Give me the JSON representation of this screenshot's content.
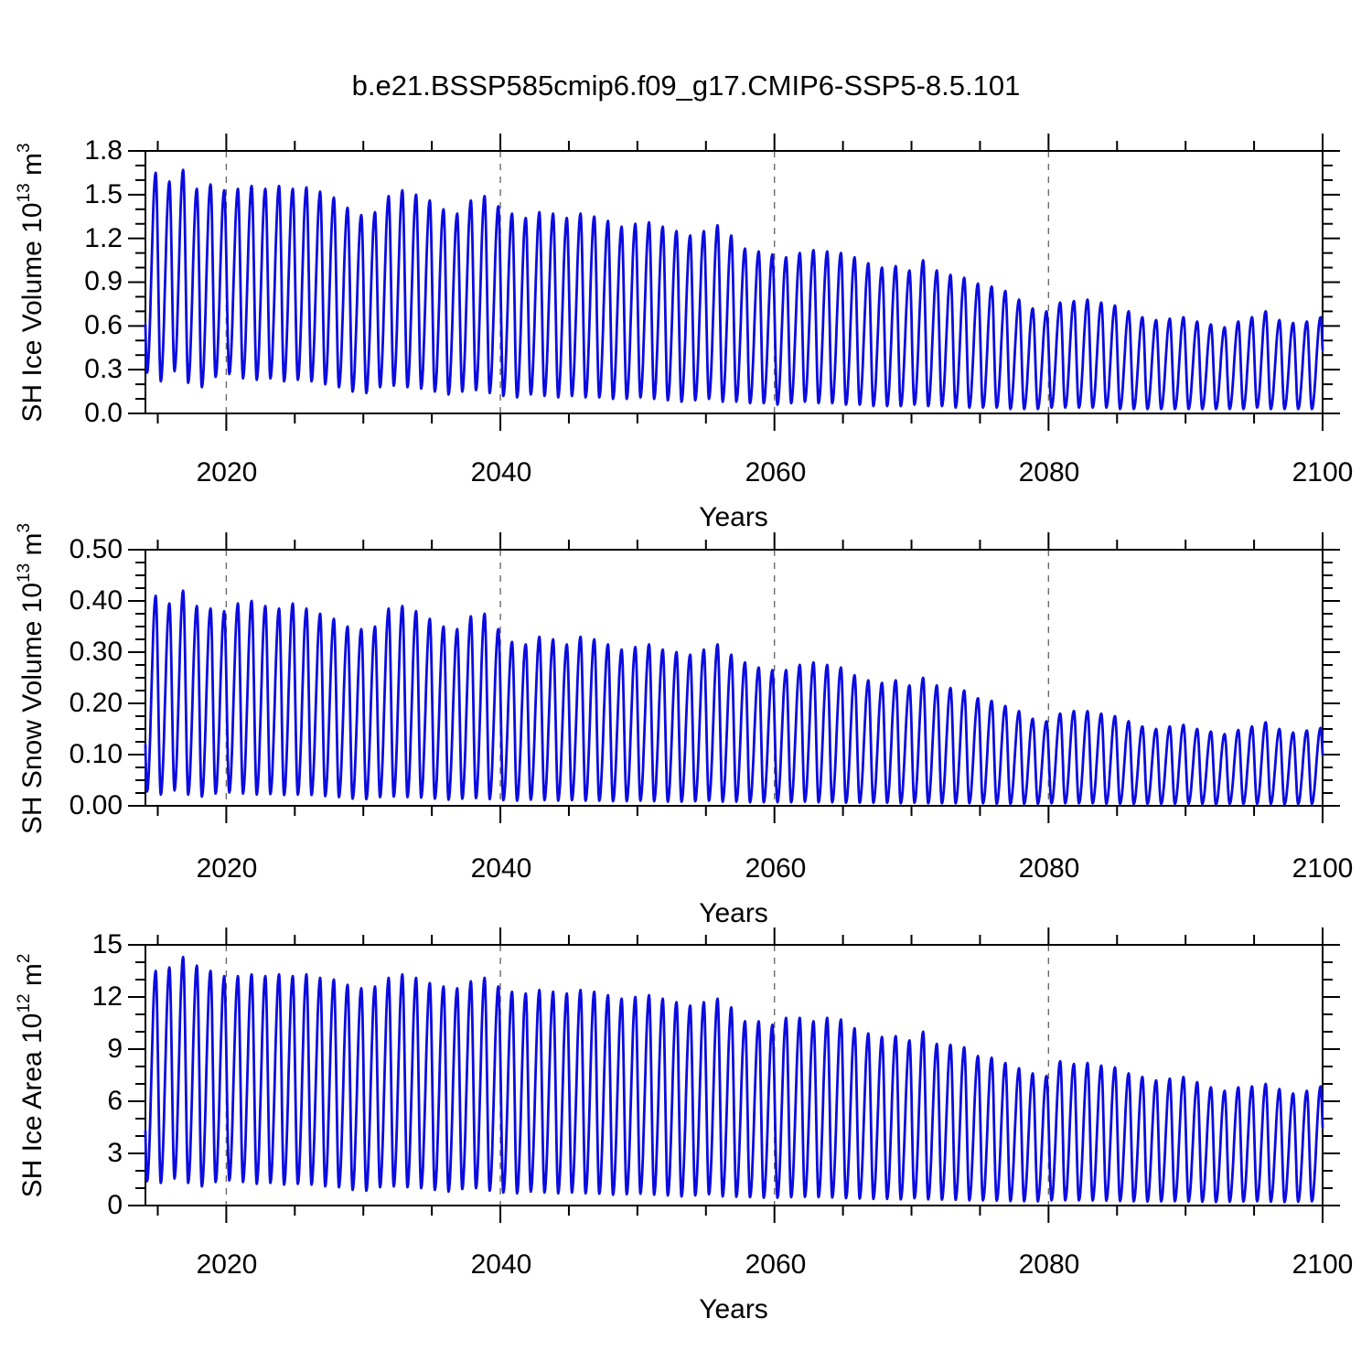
{
  "title": "b.e21.BSSP585cmip6.f09_g17.CMIP6-SSP5-8.5.101",
  "line_color": "#0b0be0",
  "grid_color": "#6b6b6b",
  "frame_color": "#000000",
  "chart_data": [
    {
      "type": "line",
      "panel": "top",
      "ylabel": {
        "pre": "SH Ice Volume 10",
        "sup": "13",
        "mid": " m",
        "sup2": "3"
      },
      "xlabel": "Years",
      "x_tick_labels": [
        "2020",
        "2040",
        "2060",
        "2080",
        "2100"
      ],
      "y_tick_labels": [
        "1.8",
        "1.5",
        "1.2",
        "0.9",
        "0.6",
        "0.3",
        "0.0"
      ],
      "ylim": [
        0,
        1.8
      ],
      "y_major_step": 0.3,
      "y_minor_step": 0.1,
      "xlim": [
        2014.1,
        2100
      ],
      "x_major_step": 20,
      "x_minor_step": 5,
      "grid": "vertical-dashed-at-major-x",
      "legend": "none",
      "year_first": 2014,
      "year_last": 2099,
      "seasonal_cycle": {
        "annual_min_at_year_fraction": 0.22,
        "annual_max_at_year_fraction": 0.85
      },
      "annual_max": [
        1.65,
        1.59,
        1.67,
        1.54,
        1.57,
        1.53,
        1.54,
        1.56,
        1.54,
        1.56,
        1.54,
        1.55,
        1.52,
        1.48,
        1.41,
        1.36,
        1.38,
        1.49,
        1.53,
        1.5,
        1.46,
        1.4,
        1.37,
        1.46,
        1.49,
        1.42,
        1.37,
        1.34,
        1.38,
        1.37,
        1.34,
        1.37,
        1.35,
        1.32,
        1.28,
        1.3,
        1.31,
        1.28,
        1.25,
        1.22,
        1.25,
        1.29,
        1.22,
        1.13,
        1.11,
        1.09,
        1.07,
        1.1,
        1.12,
        1.11,
        1.1,
        1.07,
        1.03,
        1.0,
        1.01,
        0.98,
        1.05,
        0.98,
        0.95,
        0.93,
        0.89,
        0.87,
        0.84,
        0.78,
        0.72,
        0.7,
        0.76,
        0.77,
        0.78,
        0.76,
        0.74,
        0.7,
        0.66,
        0.64,
        0.65,
        0.66,
        0.63,
        0.61,
        0.59,
        0.63,
        0.66,
        0.7,
        0.64,
        0.62,
        0.63,
        0.66
      ],
      "annual_min": [
        0.28,
        0.22,
        0.29,
        0.21,
        0.18,
        0.25,
        0.27,
        0.24,
        0.23,
        0.24,
        0.22,
        0.23,
        0.22,
        0.2,
        0.18,
        0.15,
        0.14,
        0.18,
        0.19,
        0.18,
        0.17,
        0.15,
        0.13,
        0.15,
        0.16,
        0.14,
        0.12,
        0.11,
        0.13,
        0.12,
        0.11,
        0.12,
        0.11,
        0.11,
        0.1,
        0.1,
        0.11,
        0.1,
        0.09,
        0.08,
        0.09,
        0.1,
        0.08,
        0.08,
        0.07,
        0.07,
        0.06,
        0.07,
        0.08,
        0.07,
        0.07,
        0.06,
        0.06,
        0.05,
        0.05,
        0.05,
        0.06,
        0.05,
        0.05,
        0.04,
        0.04,
        0.04,
        0.04,
        0.03,
        0.03,
        0.03,
        0.04,
        0.04,
        0.04,
        0.04,
        0.04,
        0.03,
        0.03,
        0.03,
        0.03,
        0.03,
        0.03,
        0.03,
        0.03,
        0.03,
        0.03,
        0.04,
        0.03,
        0.03,
        0.03,
        0.03
      ]
    },
    {
      "type": "line",
      "panel": "middle",
      "ylabel": {
        "pre": "SH Snow Volume 10",
        "sup": "13",
        "mid": " m",
        "sup2": "3"
      },
      "xlabel": "Years",
      "x_tick_labels": [
        "2020",
        "2040",
        "2060",
        "2080",
        "2100"
      ],
      "y_tick_labels": [
        "0.50",
        "0.40",
        "0.30",
        "0.20",
        "0.10",
        "0.00"
      ],
      "ylim": [
        0,
        0.5
      ],
      "y_major_step": 0.1,
      "y_minor_step": 0.025,
      "xlim": [
        2014.1,
        2100
      ],
      "x_major_step": 20,
      "x_minor_step": 5,
      "grid": "vertical-dashed-at-major-x",
      "legend": "none",
      "year_first": 2014,
      "year_last": 2099,
      "seasonal_cycle": {
        "annual_min_at_year_fraction": 0.22,
        "annual_max_at_year_fraction": 0.85
      },
      "annual_max": [
        0.41,
        0.395,
        0.42,
        0.39,
        0.385,
        0.38,
        0.395,
        0.4,
        0.39,
        0.385,
        0.395,
        0.385,
        0.375,
        0.365,
        0.35,
        0.345,
        0.35,
        0.385,
        0.39,
        0.38,
        0.365,
        0.35,
        0.345,
        0.37,
        0.375,
        0.345,
        0.32,
        0.315,
        0.33,
        0.325,
        0.315,
        0.33,
        0.325,
        0.315,
        0.305,
        0.31,
        0.315,
        0.305,
        0.3,
        0.295,
        0.305,
        0.315,
        0.295,
        0.28,
        0.27,
        0.265,
        0.265,
        0.275,
        0.28,
        0.275,
        0.27,
        0.255,
        0.245,
        0.24,
        0.245,
        0.235,
        0.25,
        0.235,
        0.23,
        0.225,
        0.21,
        0.205,
        0.195,
        0.185,
        0.17,
        0.165,
        0.18,
        0.185,
        0.185,
        0.18,
        0.175,
        0.165,
        0.155,
        0.15,
        0.155,
        0.158,
        0.15,
        0.145,
        0.14,
        0.148,
        0.155,
        0.163,
        0.15,
        0.143,
        0.147,
        0.152
      ],
      "annual_min": [
        0.028,
        0.022,
        0.03,
        0.022,
        0.018,
        0.024,
        0.026,
        0.024,
        0.022,
        0.023,
        0.021,
        0.022,
        0.021,
        0.019,
        0.017,
        0.014,
        0.013,
        0.017,
        0.018,
        0.017,
        0.016,
        0.014,
        0.012,
        0.014,
        0.015,
        0.013,
        0.011,
        0.01,
        0.012,
        0.011,
        0.01,
        0.011,
        0.01,
        0.01,
        0.009,
        0.009,
        0.01,
        0.009,
        0.008,
        0.008,
        0.009,
        0.01,
        0.008,
        0.008,
        0.007,
        0.007,
        0.007,
        0.007,
        0.008,
        0.007,
        0.007,
        0.006,
        0.006,
        0.006,
        0.006,
        0.005,
        0.006,
        0.005,
        0.005,
        0.005,
        0.005,
        0.005,
        0.004,
        0.004,
        0.004,
        0.004,
        0.005,
        0.005,
        0.005,
        0.005,
        0.004,
        0.004,
        0.004,
        0.004,
        0.004,
        0.004,
        0.004,
        0.004,
        0.003,
        0.004,
        0.004,
        0.004,
        0.004,
        0.003,
        0.004,
        0.004
      ]
    },
    {
      "type": "line",
      "panel": "bottom",
      "ylabel": {
        "pre": "SH Ice Area 10",
        "sup": "12",
        "mid": " m",
        "sup2": "2"
      },
      "xlabel": "Years",
      "x_tick_labels": [
        "2020",
        "2040",
        "2060",
        "2080",
        "2100"
      ],
      "y_tick_labels": [
        "15",
        "12",
        "9",
        "6",
        "3",
        "0"
      ],
      "ylim": [
        0,
        15
      ],
      "y_major_step": 3,
      "y_minor_step": 1,
      "xlim": [
        2014.1,
        2100
      ],
      "x_major_step": 20,
      "x_minor_step": 5,
      "grid": "vertical-dashed-at-major-x",
      "legend": "none",
      "year_first": 2014,
      "year_last": 2099,
      "seasonal_cycle": {
        "annual_min_at_year_fraction": 0.22,
        "annual_max_at_year_fraction": 0.85
      },
      "annual_max": [
        13.5,
        13.7,
        14.3,
        13.8,
        13.5,
        13.2,
        13.2,
        13.3,
        13.2,
        13.3,
        13.2,
        13.3,
        13.1,
        13.0,
        12.7,
        12.5,
        12.6,
        13.1,
        13.3,
        13.1,
        12.8,
        12.6,
        12.5,
        12.9,
        13.1,
        12.6,
        12.3,
        12.2,
        12.4,
        12.3,
        12.2,
        12.4,
        12.3,
        12.1,
        11.9,
        12.0,
        12.1,
        11.9,
        11.7,
        11.5,
        11.7,
        11.9,
        11.4,
        10.6,
        10.6,
        10.4,
        10.8,
        10.8,
        10.6,
        10.8,
        10.7,
        10.2,
        9.9,
        9.7,
        9.75,
        9.5,
        10.0,
        9.3,
        9.25,
        9.1,
        8.6,
        8.5,
        8.2,
        7.9,
        7.6,
        7.45,
        8.3,
        8.15,
        8.2,
        8.05,
        7.95,
        7.6,
        7.4,
        7.2,
        7.3,
        7.4,
        7.1,
        6.8,
        6.6,
        6.8,
        6.85,
        7.0,
        6.7,
        6.45,
        6.6,
        6.85
      ],
      "annual_min": [
        1.4,
        1.3,
        1.55,
        1.3,
        1.1,
        1.35,
        1.45,
        1.35,
        1.25,
        1.3,
        1.2,
        1.25,
        1.2,
        1.1,
        1.05,
        0.9,
        0.85,
        1.05,
        1.1,
        1.05,
        1.0,
        0.9,
        0.8,
        0.95,
        1.0,
        0.85,
        0.75,
        0.7,
        0.8,
        0.75,
        0.7,
        0.75,
        0.7,
        0.68,
        0.62,
        0.65,
        0.68,
        0.62,
        0.58,
        0.52,
        0.58,
        0.65,
        0.52,
        0.5,
        0.48,
        0.45,
        0.45,
        0.48,
        0.5,
        0.48,
        0.46,
        0.42,
        0.4,
        0.38,
        0.38,
        0.36,
        0.42,
        0.36,
        0.34,
        0.33,
        0.3,
        0.3,
        0.28,
        0.26,
        0.25,
        0.24,
        0.3,
        0.3,
        0.3,
        0.29,
        0.28,
        0.26,
        0.24,
        0.23,
        0.24,
        0.25,
        0.23,
        0.22,
        0.2,
        0.22,
        0.23,
        0.25,
        0.22,
        0.2,
        0.22,
        0.24
      ]
    }
  ]
}
